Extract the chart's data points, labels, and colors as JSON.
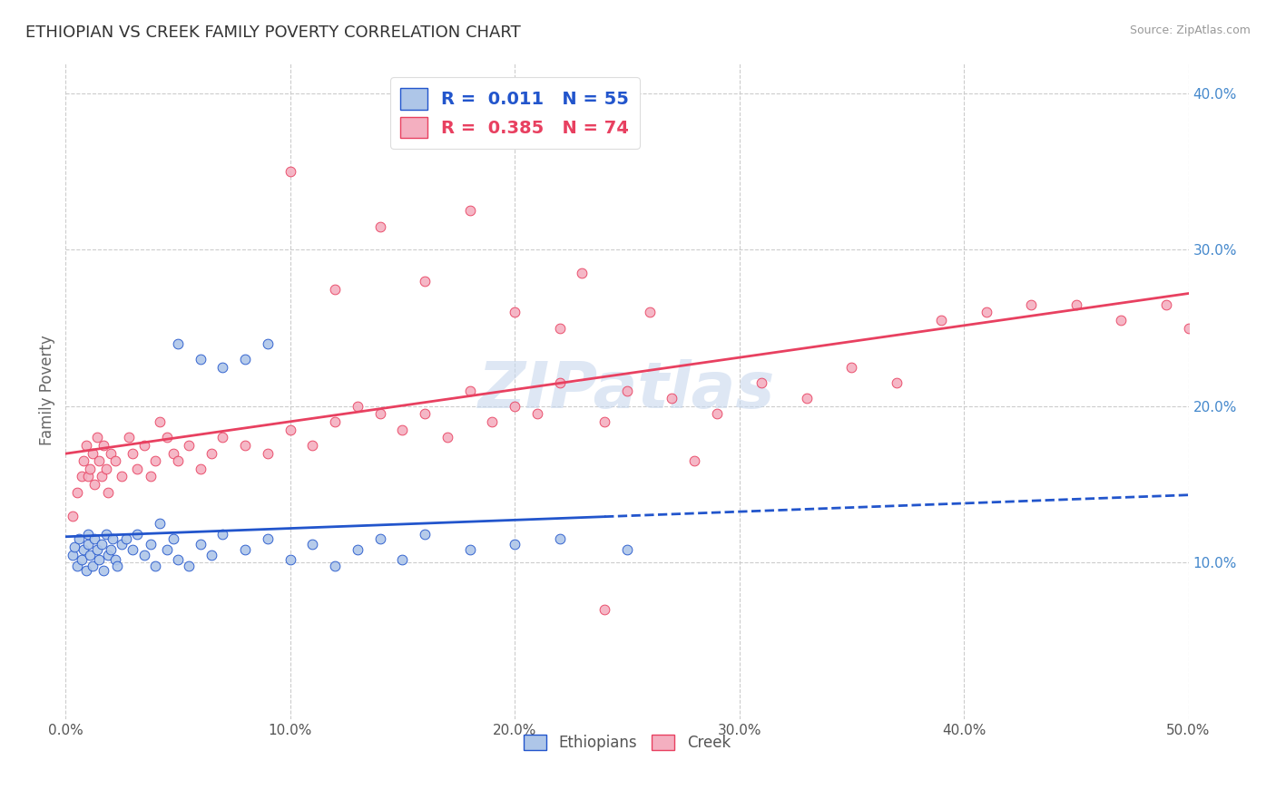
{
  "title": "ETHIOPIAN VS CREEK FAMILY POVERTY CORRELATION CHART",
  "source": "Source: ZipAtlas.com",
  "ylabel": "Family Poverty",
  "xlim": [
    0.0,
    0.5
  ],
  "ylim": [
    0.0,
    0.42
  ],
  "xtick_labels": [
    "0.0%",
    "10.0%",
    "20.0%",
    "30.0%",
    "40.0%",
    "50.0%"
  ],
  "xtick_vals": [
    0.0,
    0.1,
    0.2,
    0.3,
    0.4,
    0.5
  ],
  "ytick_labels": [
    "10.0%",
    "20.0%",
    "30.0%",
    "40.0%"
  ],
  "ytick_vals": [
    0.1,
    0.2,
    0.3,
    0.4
  ],
  "ethiopian_face_color": "#aec6e8",
  "creek_face_color": "#f4afc0",
  "trend_ethiopian_color": "#2255cc",
  "trend_creek_color": "#e84060",
  "legend_labels_top": [
    "R =  0.011   N = 55",
    "R =  0.385   N = 74"
  ],
  "legend_labels_bottom": [
    "Ethiopians",
    "Creek"
  ],
  "watermark_text": "ZIPatlas",
  "watermark_color": "#c8d8ee",
  "ethiopian_x": [
    0.003,
    0.004,
    0.005,
    0.006,
    0.007,
    0.008,
    0.009,
    0.01,
    0.01,
    0.011,
    0.012,
    0.013,
    0.014,
    0.015,
    0.016,
    0.017,
    0.018,
    0.019,
    0.02,
    0.021,
    0.022,
    0.023,
    0.025,
    0.027,
    0.03,
    0.032,
    0.035,
    0.038,
    0.04,
    0.042,
    0.045,
    0.048,
    0.05,
    0.055,
    0.06,
    0.065,
    0.07,
    0.08,
    0.09,
    0.1,
    0.11,
    0.12,
    0.13,
    0.14,
    0.15,
    0.16,
    0.18,
    0.2,
    0.22,
    0.25,
    0.05,
    0.06,
    0.07,
    0.08,
    0.09
  ],
  "ethiopian_y": [
    0.105,
    0.11,
    0.098,
    0.115,
    0.102,
    0.108,
    0.095,
    0.112,
    0.118,
    0.105,
    0.098,
    0.115,
    0.108,
    0.102,
    0.112,
    0.095,
    0.118,
    0.105,
    0.108,
    0.115,
    0.102,
    0.098,
    0.112,
    0.115,
    0.108,
    0.118,
    0.105,
    0.112,
    0.098,
    0.125,
    0.108,
    0.115,
    0.102,
    0.098,
    0.112,
    0.105,
    0.118,
    0.108,
    0.115,
    0.102,
    0.112,
    0.098,
    0.108,
    0.115,
    0.102,
    0.118,
    0.108,
    0.112,
    0.115,
    0.108,
    0.24,
    0.23,
    0.225,
    0.23,
    0.24
  ],
  "creek_x": [
    0.003,
    0.005,
    0.007,
    0.008,
    0.009,
    0.01,
    0.011,
    0.012,
    0.013,
    0.014,
    0.015,
    0.016,
    0.017,
    0.018,
    0.019,
    0.02,
    0.022,
    0.025,
    0.028,
    0.03,
    0.032,
    0.035,
    0.038,
    0.04,
    0.042,
    0.045,
    0.048,
    0.05,
    0.055,
    0.06,
    0.065,
    0.07,
    0.08,
    0.09,
    0.1,
    0.11,
    0.12,
    0.13,
    0.14,
    0.15,
    0.16,
    0.17,
    0.18,
    0.19,
    0.2,
    0.21,
    0.22,
    0.23,
    0.24,
    0.25,
    0.27,
    0.29,
    0.31,
    0.33,
    0.35,
    0.37,
    0.39,
    0.41,
    0.43,
    0.45,
    0.47,
    0.49,
    0.5,
    0.2,
    0.1,
    0.12,
    0.14,
    0.16,
    0.18,
    0.2,
    0.22,
    0.24,
    0.26,
    0.28
  ],
  "creek_y": [
    0.13,
    0.145,
    0.155,
    0.165,
    0.175,
    0.155,
    0.16,
    0.17,
    0.15,
    0.18,
    0.165,
    0.155,
    0.175,
    0.16,
    0.145,
    0.17,
    0.165,
    0.155,
    0.18,
    0.17,
    0.16,
    0.175,
    0.155,
    0.165,
    0.19,
    0.18,
    0.17,
    0.165,
    0.175,
    0.16,
    0.17,
    0.18,
    0.175,
    0.17,
    0.185,
    0.175,
    0.19,
    0.2,
    0.195,
    0.185,
    0.195,
    0.18,
    0.21,
    0.19,
    0.2,
    0.195,
    0.215,
    0.285,
    0.19,
    0.21,
    0.205,
    0.195,
    0.215,
    0.205,
    0.225,
    0.215,
    0.255,
    0.26,
    0.265,
    0.265,
    0.255,
    0.265,
    0.25,
    0.37,
    0.35,
    0.275,
    0.315,
    0.28,
    0.325,
    0.26,
    0.25,
    0.07,
    0.26,
    0.165
  ]
}
